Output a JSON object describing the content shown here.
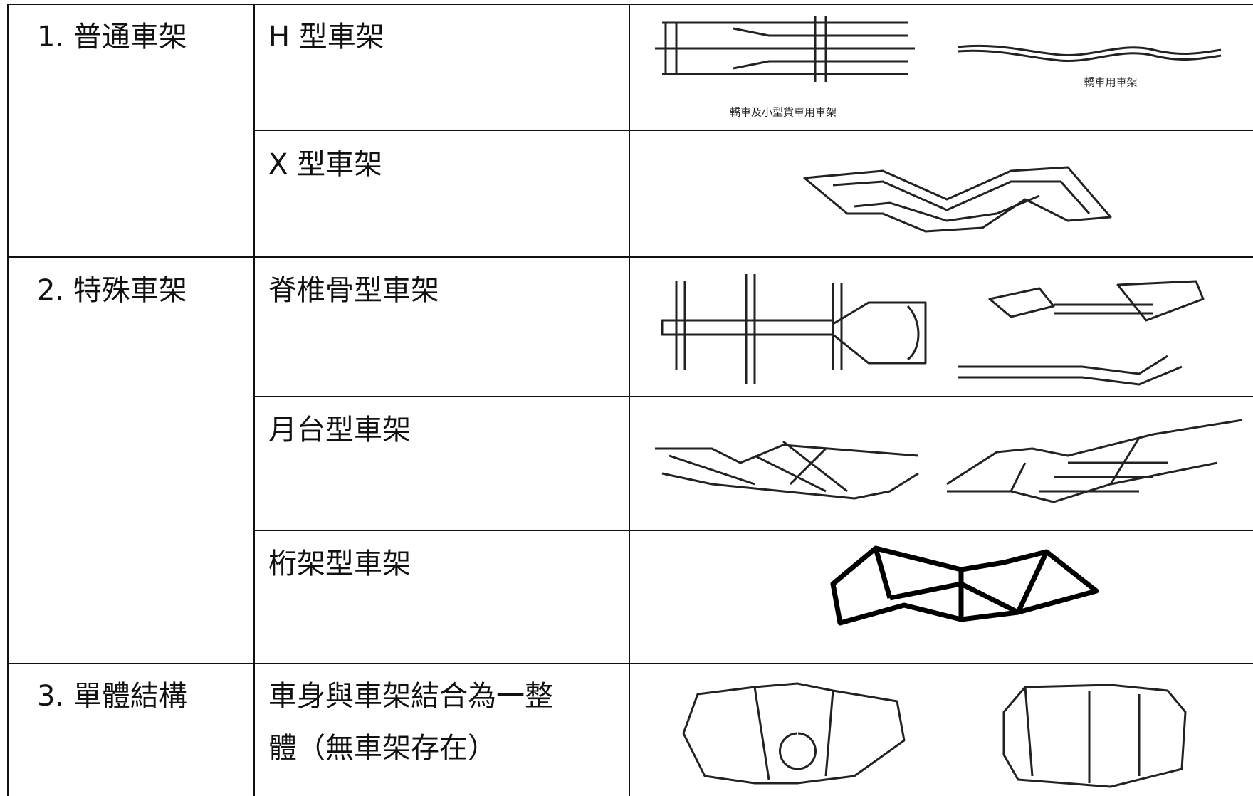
{
  "table": {
    "rows": [
      {
        "category": "1.  普通車架",
        "type": "H 型車架",
        "captions": [
          "轎車及小型貨車用車架",
          "轎車用車架"
        ]
      },
      {
        "type": "X 型車架"
      },
      {
        "category": "2.  特殊車架",
        "type": "脊椎骨型車架"
      },
      {
        "type": "月台型車架"
      },
      {
        "type": "桁架型車架"
      },
      {
        "category": "3.  單體結構",
        "type_lines": [
          "車身與車架結合為一整",
          "體（無車架存在）"
        ]
      }
    ]
  }
}
